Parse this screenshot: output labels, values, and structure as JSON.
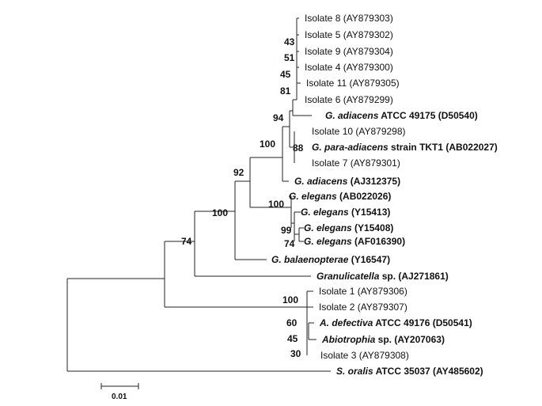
{
  "tree": {
    "leaves": [
      {
        "id": "i8",
        "segments": [
          {
            "t": "Isolate  8 (AY879303)",
            "i": false
          }
        ],
        "bold": false
      },
      {
        "id": "i5",
        "segments": [
          {
            "t": "Isolate 5 (AY879302)",
            "i": false
          }
        ],
        "bold": false
      },
      {
        "id": "i9",
        "segments": [
          {
            "t": "Isolate 9 (AY879304)",
            "i": false
          }
        ],
        "bold": false
      },
      {
        "id": "i4",
        "segments": [
          {
            "t": "Isolate 4 (AY879300)",
            "i": false
          }
        ],
        "bold": false
      },
      {
        "id": "i11",
        "segments": [
          {
            "t": "Isolate 11 (AY879305)",
            "i": false
          }
        ],
        "bold": false
      },
      {
        "id": "i6",
        "segments": [
          {
            "t": "Isolate 6 (AY879299)",
            "i": false
          }
        ],
        "bold": false
      },
      {
        "id": "gad1",
        "segments": [
          {
            "t": "G. adiacens",
            "i": true
          },
          {
            "t": " ATCC 49175 (D50540)",
            "i": false
          }
        ],
        "bold": true
      },
      {
        "id": "i10",
        "segments": [
          {
            "t": "Isolate 10 (AY879298)",
            "i": false
          }
        ],
        "bold": false
      },
      {
        "id": "gpa",
        "segments": [
          {
            "t": "G. para-adiacens",
            "i": true
          },
          {
            "t": " strain TKT1 (AB022027)",
            "i": false
          }
        ],
        "bold": true
      },
      {
        "id": "i7",
        "segments": [
          {
            "t": "Isolate 7 (AY879301)",
            "i": false
          }
        ],
        "bold": false
      },
      {
        "id": "gad2",
        "segments": [
          {
            "t": "G. adiacens",
            "i": true
          },
          {
            "t": " (AJ312375)",
            "i": false
          }
        ],
        "bold": true
      },
      {
        "id": "gel1",
        "segments": [
          {
            "t": "G. elegans",
            "i": true
          },
          {
            "t": " (AB022026)",
            "i": false
          }
        ],
        "bold": true
      },
      {
        "id": "gel2",
        "segments": [
          {
            "t": "G. elegans",
            "i": true
          },
          {
            "t": " (Y15413)",
            "i": false
          }
        ],
        "bold": true
      },
      {
        "id": "gel3",
        "segments": [
          {
            "t": "G. elegans",
            "i": true
          },
          {
            "t": " (Y15408)",
            "i": false
          }
        ],
        "bold": true
      },
      {
        "id": "gel4",
        "segments": [
          {
            "t": "G. elegans",
            "i": true
          },
          {
            "t": " (AF016390)",
            "i": false
          }
        ],
        "bold": true
      },
      {
        "id": "gba",
        "segments": [
          {
            "t": "G. balaenopterae",
            "i": true
          },
          {
            "t": " (Y16547)",
            "i": false
          }
        ],
        "bold": true
      },
      {
        "id": "gra",
        "segments": [
          {
            "t": "Granulicatella",
            "i": true
          },
          {
            "t": " sp. (AJ271861)",
            "i": false
          }
        ],
        "bold": true
      },
      {
        "id": "i1",
        "segments": [
          {
            "t": "Isolate 1 (AY879306)",
            "i": false
          }
        ],
        "bold": false
      },
      {
        "id": "i2",
        "segments": [
          {
            "t": "Isolate 2 (AY879307)",
            "i": false
          }
        ],
        "bold": false
      },
      {
        "id": "ade",
        "segments": [
          {
            "t": "A. defectiva",
            "i": true
          },
          {
            "t": "  ATCC 49176 (D50541)",
            "i": false
          }
        ],
        "bold": true
      },
      {
        "id": "abi",
        "segments": [
          {
            "t": "Abiotrophia",
            "i": true
          },
          {
            "t": " sp. (AY207063)",
            "i": false
          }
        ],
        "bold": true
      },
      {
        "id": "i3",
        "segments": [
          {
            "t": "Isolate 3 (AY879308)",
            "i": false
          }
        ],
        "bold": false
      },
      {
        "id": "sor",
        "segments": [
          {
            "t": "S. oralis",
            "i": true
          },
          {
            "t": " ATCC 35037 (AY485602)",
            "i": false
          }
        ],
        "bold": true
      }
    ],
    "bootstrap": [
      {
        "id": "b43",
        "value": "43"
      },
      {
        "id": "b51",
        "value": "51"
      },
      {
        "id": "b45a",
        "value": "45"
      },
      {
        "id": "b81",
        "value": "81"
      },
      {
        "id": "b94",
        "value": "94"
      },
      {
        "id": "b100a",
        "value": "100"
      },
      {
        "id": "b88",
        "value": "88"
      },
      {
        "id": "b92",
        "value": "92"
      },
      {
        "id": "b100b",
        "value": "100"
      },
      {
        "id": "b100c",
        "value": "100"
      },
      {
        "id": "b99",
        "value": "99"
      },
      {
        "id": "b74a",
        "value": "74"
      },
      {
        "id": "b74b",
        "value": "74"
      },
      {
        "id": "b100d",
        "value": "100"
      },
      {
        "id": "b60",
        "value": "60"
      },
      {
        "id": "b45b",
        "value": "45"
      },
      {
        "id": "b30",
        "value": "30"
      }
    ],
    "scale_bar_label": "0.01"
  }
}
